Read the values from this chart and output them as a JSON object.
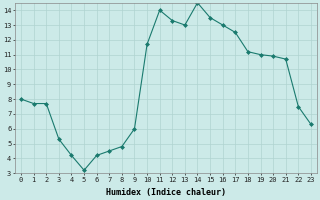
{
  "x": [
    0,
    1,
    2,
    3,
    4,
    5,
    6,
    7,
    8,
    9,
    10,
    11,
    12,
    13,
    14,
    15,
    16,
    17,
    18,
    19,
    20,
    21,
    22,
    23
  ],
  "y": [
    8.0,
    7.7,
    7.7,
    5.3,
    4.2,
    3.2,
    4.2,
    4.5,
    4.8,
    6.0,
    11.7,
    14.0,
    13.3,
    13.0,
    14.5,
    13.5,
    13.0,
    12.5,
    11.2,
    11.0,
    10.9,
    10.7,
    7.5,
    6.3
  ],
  "line_color": "#1a7a6e",
  "marker": "D",
  "marker_size": 2.0,
  "bg_color": "#cceae8",
  "grid_color": "#b0d4d0",
  "xlabel": "Humidex (Indice chaleur)",
  "ylim": [
    3,
    14.5
  ],
  "xlim": [
    -0.5,
    23.5
  ],
  "yticks": [
    3,
    4,
    5,
    6,
    7,
    8,
    9,
    10,
    11,
    12,
    13,
    14
  ],
  "xticks": [
    0,
    1,
    2,
    3,
    4,
    5,
    6,
    7,
    8,
    9,
    10,
    11,
    12,
    13,
    14,
    15,
    16,
    17,
    18,
    19,
    20,
    21,
    22,
    23
  ],
  "tick_fontsize": 5.0,
  "xlabel_fontsize": 6.0
}
